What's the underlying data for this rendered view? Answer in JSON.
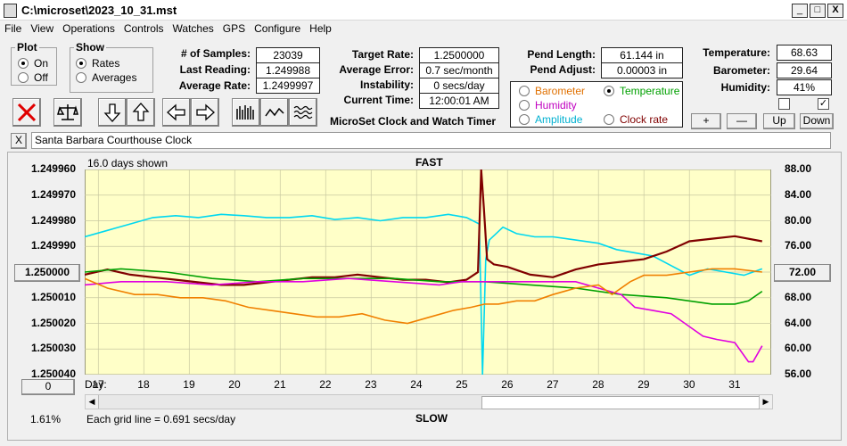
{
  "window": {
    "title": "C:\\microset\\2023_10_31.mst",
    "minimize": "_",
    "maximize": "□",
    "close": "X"
  },
  "menu": [
    "File",
    "View",
    "Operations",
    "Controls",
    "Watches",
    "GPS",
    "Configure",
    "Help"
  ],
  "plot": {
    "legend": "Plot",
    "on": "On",
    "off": "Off"
  },
  "show": {
    "legend": "Show",
    "rates": "Rates",
    "averages": "Averages"
  },
  "stats": {
    "samples_label": "# of Samples:",
    "samples": "23039",
    "last_label": "Last Reading:",
    "last": "1.249988",
    "avg_rate_label": "Average Rate:",
    "avg_rate": "1.2499997",
    "target_label": "Target Rate:",
    "target": "1.2500000",
    "avg_err_label": "Average Error:",
    "avg_err": "0.7 sec/month",
    "instab_label": "Instability:",
    "instab": "0 secs/day",
    "time_label": "Current Time:",
    "time": "12:00:01 AM",
    "pend_len_label": "Pend Length:",
    "pend_len": "61.144 in",
    "pend_adj_label": "Pend Adjust:",
    "pend_adj": "0.00003 in",
    "temp_label": "Temperature:",
    "temp": "68.63",
    "baro_label": "Barometer:",
    "baro": "29.64",
    "hum_label": "Humidity:",
    "hum": "41%"
  },
  "app_name": "MicroSet Clock and Watch Timer",
  "aux": {
    "barometer": "Barometer",
    "temperature": "Temperature",
    "humidity": "Humidity",
    "amplitude": "Amplitude",
    "clock_rate": "Clock rate",
    "colors": {
      "barometer": "#e07000",
      "temperature": "#00a000",
      "humidity": "#c000c0",
      "amplitude": "#00b0d0",
      "clock_rate": "#800000"
    }
  },
  "scale_buttons": {
    "plus": "+",
    "minus": "—",
    "up": "Up",
    "down": "Down"
  },
  "checkbox_right": "✓",
  "clock_name": "Santa Barbara Courthouse Clock",
  "small_close": "X",
  "graph": {
    "days_shown": "16.0 days shown",
    "fast": "FAST",
    "slow": "SLOW",
    "day_label": "Day:",
    "grid_note": "Each grid line = 0.691 secs/day",
    "left_button": "0",
    "percent": "1.61%",
    "center_left": "1.250000",
    "center_right": "72.00"
  },
  "chart_data": {
    "type": "line",
    "x_range": [
      16.7,
      31.8
    ],
    "left_axis_ticks": [
      "1.249960",
      "1.249970",
      "1.249980",
      "1.249990",
      "1.250000",
      "1.250010",
      "1.250020",
      "1.250030",
      "1.250040"
    ],
    "left_ylim": [
      1.24996,
      1.25004
    ],
    "right_axis_ticks": [
      "88.00",
      "84.00",
      "80.00",
      "76.00",
      "72.00",
      "68.00",
      "64.00",
      "60.00",
      "56.00"
    ],
    "right_ylim": [
      56,
      88
    ],
    "day_ticks": [
      "17",
      "18",
      "19",
      "20",
      "21",
      "22",
      "23",
      "24",
      "25",
      "26",
      "27",
      "28",
      "29",
      "30",
      "31"
    ],
    "series": [
      {
        "name": "Amplitude",
        "color": "#00d8f0",
        "axis": "right",
        "x": [
          16.7,
          17.2,
          17.7,
          18.2,
          18.7,
          19.2,
          19.7,
          20.2,
          20.7,
          21.2,
          21.7,
          22.2,
          22.7,
          23.2,
          23.7,
          24.2,
          24.7,
          25.1,
          25.38,
          25.45,
          25.52,
          25.6,
          25.9,
          26.2,
          26.6,
          27.0,
          27.5,
          28.0,
          28.4,
          28.8,
          29.2,
          29.6,
          30.0,
          30.4,
          30.8,
          31.2,
          31.6
        ],
        "y": [
          77.5,
          78.5,
          79.5,
          80.5,
          80.8,
          80.5,
          81,
          80.8,
          80.5,
          80.5,
          80.8,
          80.2,
          80.5,
          80,
          80.5,
          80.5,
          81,
          80.5,
          79.5,
          56,
          74,
          77,
          79,
          78,
          77.5,
          77.5,
          77,
          76.5,
          75.5,
          75,
          74.5,
          73,
          71.5,
          72.5,
          72,
          71.5,
          72.5
        ]
      },
      {
        "name": "Clock rate",
        "color": "#800000",
        "axis": "left",
        "x": [
          16.7,
          17.2,
          17.7,
          18.2,
          18.7,
          19.2,
          19.7,
          20.2,
          20.7,
          21.2,
          21.7,
          22.2,
          22.7,
          23.2,
          23.7,
          24.2,
          24.7,
          25.1,
          25.35,
          25.42,
          25.48,
          25.55,
          25.7,
          26.0,
          26.5,
          27.0,
          27.5,
          28.0,
          28.5,
          29.0,
          29.5,
          30.0,
          30.5,
          31.0,
          31.6
        ],
        "y": [
          1.250001,
          1.249999,
          1.250001,
          1.250002,
          1.250003,
          1.250004,
          1.250005,
          1.250005,
          1.250004,
          1.250003,
          1.250002,
          1.250002,
          1.250001,
          1.250002,
          1.250003,
          1.250003,
          1.250004,
          1.250003,
          1.25,
          1.24996,
          1.249975,
          1.249995,
          1.249997,
          1.249998,
          1.250001,
          1.250002,
          1.249999,
          1.249997,
          1.249996,
          1.249995,
          1.249992,
          1.249988,
          1.249987,
          1.249986,
          1.249988
        ]
      },
      {
        "name": "Temperature",
        "color": "#00a000",
        "axis": "right",
        "x": [
          16.7,
          17.5,
          18.5,
          19.5,
          20.5,
          21.5,
          22.5,
          23.5,
          24.5,
          25.5,
          26.5,
          27.5,
          28.5,
          29.5,
          30.5,
          31.0,
          31.3,
          31.6
        ],
        "y": [
          72,
          72.5,
          72,
          71,
          70.5,
          71,
          71,
          71,
          70.5,
          70.5,
          70,
          69.5,
          68.5,
          68,
          67,
          67,
          67.5,
          69
        ]
      },
      {
        "name": "Humidity",
        "color": "#e000e0",
        "axis": "right",
        "x": [
          16.7,
          17.5,
          18.5,
          19.5,
          20.5,
          21.5,
          22.5,
          23.5,
          24.5,
          25.0,
          25.5,
          26.5,
          27.5,
          28.0,
          28.5,
          28.8,
          29.2,
          29.6,
          30.0,
          30.3,
          30.6,
          31.0,
          31.3,
          31.4,
          31.6
        ],
        "y": [
          70,
          70.5,
          70.5,
          70,
          70.5,
          70.5,
          71,
          70.5,
          70,
          70.5,
          70.5,
          70.5,
          70.5,
          69.5,
          68.5,
          66.5,
          66,
          65.5,
          63.5,
          62,
          61.5,
          61,
          58,
          58,
          60.5
        ]
      },
      {
        "name": "Barometer",
        "color": "#f08000",
        "axis": "right",
        "x": [
          16.7,
          17.2,
          17.8,
          18.3,
          18.8,
          19.3,
          19.8,
          20.3,
          20.8,
          21.3,
          21.8,
          22.3,
          22.8,
          23.3,
          23.8,
          24.3,
          24.8,
          25.2,
          25.5,
          25.8,
          26.2,
          26.6,
          27.0,
          27.5,
          28.0,
          28.3,
          28.7,
          29.0,
          29.5,
          30.0,
          30.5,
          31.0,
          31.6
        ],
        "y": [
          71,
          69.5,
          68.5,
          68.5,
          68,
          68,
          67.5,
          66.5,
          66,
          65.5,
          65,
          65,
          65.5,
          64.5,
          64,
          65,
          66,
          66.5,
          67,
          67,
          67.5,
          67.5,
          68.5,
          69.5,
          70,
          68.5,
          70.5,
          71.5,
          71.5,
          72,
          72.5,
          72.5,
          72
        ]
      }
    ]
  }
}
